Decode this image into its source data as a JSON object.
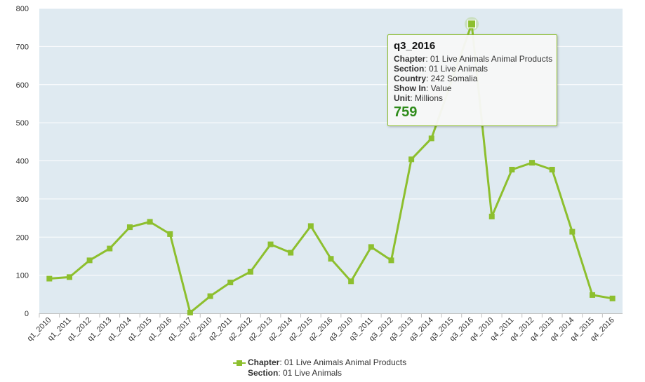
{
  "chart_data": {
    "type": "line",
    "categories": [
      "q1_2010",
      "q1_2011",
      "q1_2012",
      "q1_2013",
      "q1_2014",
      "q1_2015",
      "q1_2016",
      "q1_2017",
      "q2_2010",
      "q2_2011",
      "q2_2012",
      "q2_2013",
      "q2_2014",
      "q2_2015",
      "q2_2016",
      "q3_2010",
      "q3_2011",
      "q3_2012",
      "q3_2013",
      "q3_2014",
      "q3_2015",
      "q3_2016",
      "q4_2010",
      "q4_2011",
      "q4_2012",
      "q4_2013",
      "q4_2014",
      "q4_2015",
      "q4_2016"
    ],
    "series": [
      {
        "values": [
          91,
          95,
          139,
          170,
          226,
          240,
          208,
          2,
          45,
          81,
          109,
          181,
          159,
          229,
          143,
          84,
          174,
          139,
          404,
          459,
          null,
          759,
          254,
          377,
          395,
          377,
          214,
          48,
          39
        ]
      }
    ],
    "ylim": [
      0,
      800
    ],
    "yticks": [
      0,
      100,
      200,
      300,
      400,
      500,
      600,
      700,
      800
    ],
    "grid": true,
    "series_color": "#8dbf2e",
    "legend_placement": "bottom-center"
  },
  "tooltip": {
    "title": "q3_2016",
    "rows": [
      {
        "label": "Chapter",
        "value": ": 01 Live Animals Animal Products"
      },
      {
        "label": "Section",
        "value": ": 01 Live Animals"
      },
      {
        "label": "Country",
        "value": ": 242 Somalia"
      },
      {
        "label": "Show In",
        "value": ": Value"
      },
      {
        "label": "Unit",
        "value": ": Millions"
      }
    ],
    "value": "759"
  },
  "legend": {
    "line1_label": "Chapter",
    "line1_value": ": 01 Live Animals Animal Products",
    "line2_label": "Section",
    "line2_value": ": 01 Live Animals"
  }
}
